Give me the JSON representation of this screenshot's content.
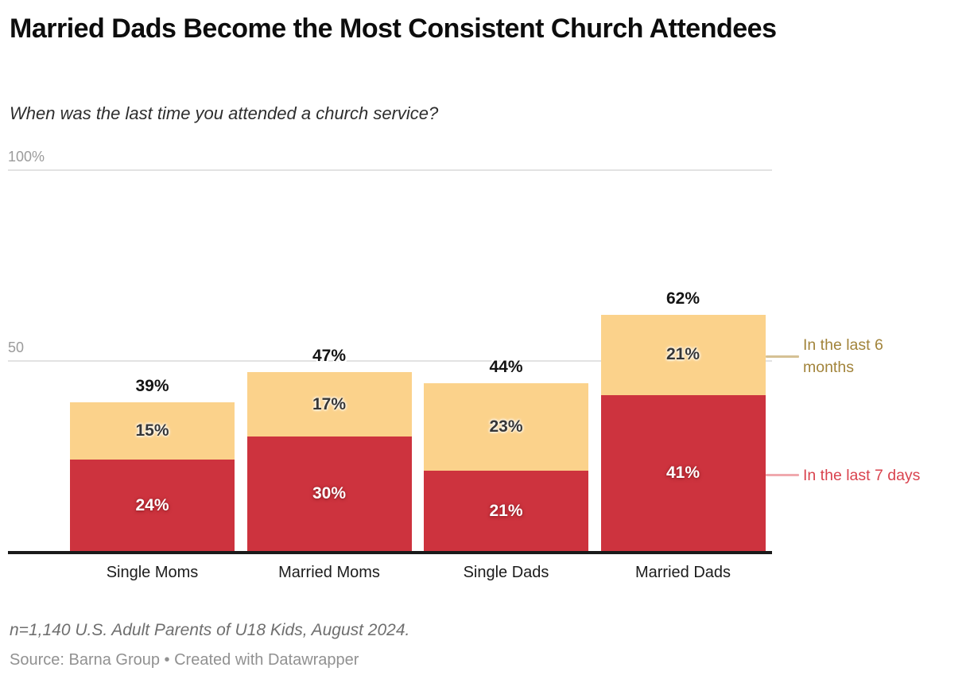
{
  "header": {
    "title": "Married Dads Become the Most Consistent Church Attendees",
    "subtitle": "When was the last time you attended a church service?"
  },
  "chart_data": {
    "type": "bar",
    "variant": "stacked-column",
    "title": "Married Dads Become the Most Consistent Church Attendees",
    "subtitle": "When was the last time you attended a church service?",
    "categories": [
      "Single Moms",
      "Married Moms",
      "Single Dads",
      "Married Dads"
    ],
    "series": [
      {
        "name": "In the last 7 days",
        "color": "#cd333e",
        "label_style": "on-dark",
        "values": [
          24,
          30,
          21,
          41
        ]
      },
      {
        "name": "In the last 6 months",
        "color": "#fbd28b",
        "label_style": "on-light",
        "values": [
          15,
          17,
          23,
          21
        ]
      }
    ],
    "totals": [
      "39%",
      "47%",
      "44%",
      "62%"
    ],
    "segment_labels": [
      [
        "24%",
        "30%",
        "21%",
        "41%"
      ],
      [
        "15%",
        "17%",
        "23%",
        "21%"
      ]
    ],
    "ylim": [
      0,
      100
    ],
    "y_ticks": [
      {
        "value": 100,
        "label": "100%"
      },
      {
        "value": 50,
        "label": "50"
      }
    ],
    "grid": true,
    "legend_position": "right-annotations",
    "unit": "%"
  },
  "legend": {
    "items": [
      {
        "label": "In the last 6 months",
        "text_color": "#a2843b",
        "line_color": "#d5c194"
      },
      {
        "label": "In the last 7 days",
        "text_color": "#d9434e",
        "line_color": "#f0a9ae"
      }
    ]
  },
  "footer": {
    "note": "n=1,140 U.S. Adult Parents of U18 Kids, August 2024.",
    "source": "Source: Barna Group • Created with Datawrapper"
  }
}
